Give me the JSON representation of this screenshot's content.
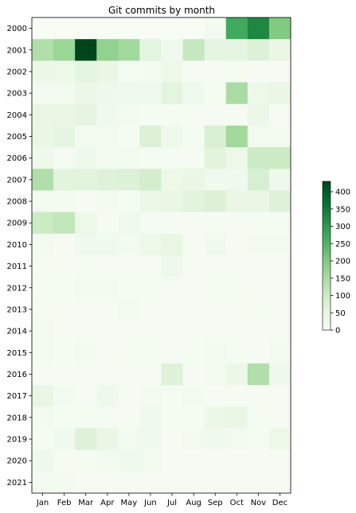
{
  "chart_data": {
    "type": "heatmap",
    "title": "Git commits by month",
    "xlabel": "",
    "ylabel": "",
    "x_categories": [
      "Jan",
      "Feb",
      "Mar",
      "Apr",
      "May",
      "Jun",
      "Jul",
      "Aug",
      "Sep",
      "Oct",
      "Nov",
      "Dec"
    ],
    "y_categories": [
      "2000",
      "2001",
      "2002",
      "2003",
      "2004",
      "2005",
      "2006",
      "2007",
      "2008",
      "2009",
      "2010",
      "2011",
      "2012",
      "2013",
      "2014",
      "2015",
      "2016",
      "2017",
      "2018",
      "2019",
      "2020",
      "2021"
    ],
    "values": [
      [
        0,
        0,
        0,
        0,
        0,
        0,
        0,
        0,
        15,
        270,
        330,
        200
      ],
      [
        140,
        170,
        430,
        180,
        160,
        55,
        20,
        110,
        50,
        50,
        70,
        40
      ],
      [
        35,
        30,
        55,
        40,
        10,
        12,
        30,
        5,
        5,
        10,
        5,
        5
      ],
      [
        15,
        15,
        35,
        25,
        20,
        20,
        55,
        20,
        10,
        150,
        30,
        40
      ],
      [
        45,
        45,
        50,
        20,
        15,
        10,
        10,
        5,
        5,
        5,
        35,
        5
      ],
      [
        40,
        50,
        15,
        15,
        10,
        70,
        25,
        10,
        75,
        160,
        15,
        15
      ],
      [
        25,
        5,
        25,
        15,
        15,
        10,
        5,
        5,
        60,
        30,
        100,
        100
      ],
      [
        140,
        60,
        60,
        65,
        70,
        85,
        30,
        40,
        20,
        20,
        80,
        25
      ],
      [
        15,
        15,
        5,
        15,
        10,
        35,
        40,
        60,
        70,
        40,
        40,
        65
      ],
      [
        100,
        115,
        30,
        5,
        20,
        5,
        5,
        5,
        5,
        5,
        10,
        10
      ],
      [
        15,
        5,
        20,
        20,
        15,
        30,
        45,
        5,
        20,
        5,
        15,
        15
      ],
      [
        10,
        5,
        10,
        5,
        5,
        5,
        25,
        5,
        5,
        5,
        5,
        5
      ],
      [
        10,
        10,
        15,
        15,
        10,
        10,
        5,
        5,
        10,
        10,
        5,
        5
      ],
      [
        10,
        5,
        5,
        5,
        15,
        5,
        5,
        5,
        5,
        5,
        10,
        5
      ],
      [
        15,
        5,
        5,
        5,
        5,
        5,
        5,
        5,
        5,
        5,
        5,
        5
      ],
      [
        15,
        10,
        15,
        5,
        10,
        10,
        5,
        10,
        15,
        10,
        5,
        15
      ],
      [
        5,
        5,
        5,
        5,
        5,
        5,
        65,
        5,
        15,
        35,
        140,
        25
      ],
      [
        45,
        15,
        5,
        25,
        5,
        15,
        10,
        15,
        5,
        5,
        5,
        5
      ],
      [
        15,
        10,
        10,
        5,
        5,
        20,
        10,
        10,
        35,
        40,
        10,
        5
      ],
      [
        10,
        20,
        65,
        40,
        15,
        20,
        5,
        15,
        20,
        15,
        10,
        30
      ],
      [
        25,
        5,
        10,
        15,
        20,
        15,
        5,
        5,
        5,
        5,
        5,
        5
      ],
      [
        15,
        15,
        5,
        5,
        5,
        5,
        5,
        5,
        5,
        5,
        5,
        5
      ]
    ],
    "colorbar": {
      "min": 0,
      "max": 430,
      "ticks": [
        0,
        50,
        100,
        150,
        200,
        250,
        300,
        350,
        400
      ]
    },
    "colormap": {
      "name": "Greens",
      "stops": [
        "#f7fcf5",
        "#e5f5e0",
        "#c7e9c0",
        "#a1d99b",
        "#74c476",
        "#41ab5d",
        "#238b45",
        "#006d2c",
        "#00441b"
      ]
    },
    "grid": false,
    "legend": "colorbar-right"
  }
}
